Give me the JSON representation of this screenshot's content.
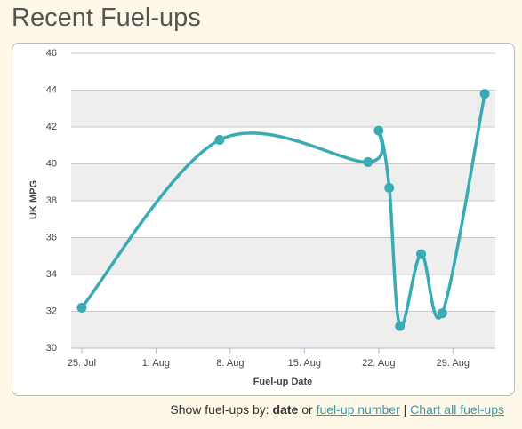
{
  "header": {
    "title": "Recent Fuel-ups"
  },
  "chart_data": {
    "type": "line",
    "ylabel": "UK MPG",
    "xlabel": "Fuel-up Date",
    "x": [
      "07-25",
      "08-07",
      "08-21",
      "08-22",
      "08-23",
      "08-24",
      "08-26",
      "08-28",
      "09-01"
    ],
    "series": [
      {
        "color": "#3aabb4",
        "values": [
          32.2,
          41.3,
          40.1,
          41.8,
          38.7,
          31.2,
          35.1,
          31.9,
          43.8
        ]
      }
    ],
    "xlim": [
      "07-24",
      "09-02"
    ],
    "xticks": [
      {
        "value": "07-25",
        "label": "25. Jul"
      },
      {
        "value": "08-01",
        "label": "1. Aug"
      },
      {
        "value": "08-08",
        "label": "8. Aug"
      },
      {
        "value": "08-15",
        "label": "15. Aug"
      },
      {
        "value": "08-22",
        "label": "22. Aug"
      },
      {
        "value": "08-29",
        "label": "29. Aug"
      }
    ],
    "ylim": [
      30,
      46
    ],
    "yticks": [
      30,
      32,
      34,
      36,
      38,
      40,
      42,
      44,
      46
    ],
    "bands": true
  },
  "footer": {
    "prefix": "Show fuel-ups by:",
    "current": "date",
    "or": "or",
    "link1": "fuel-up number",
    "sep": "|",
    "link2": "Chart all fuel-ups"
  }
}
